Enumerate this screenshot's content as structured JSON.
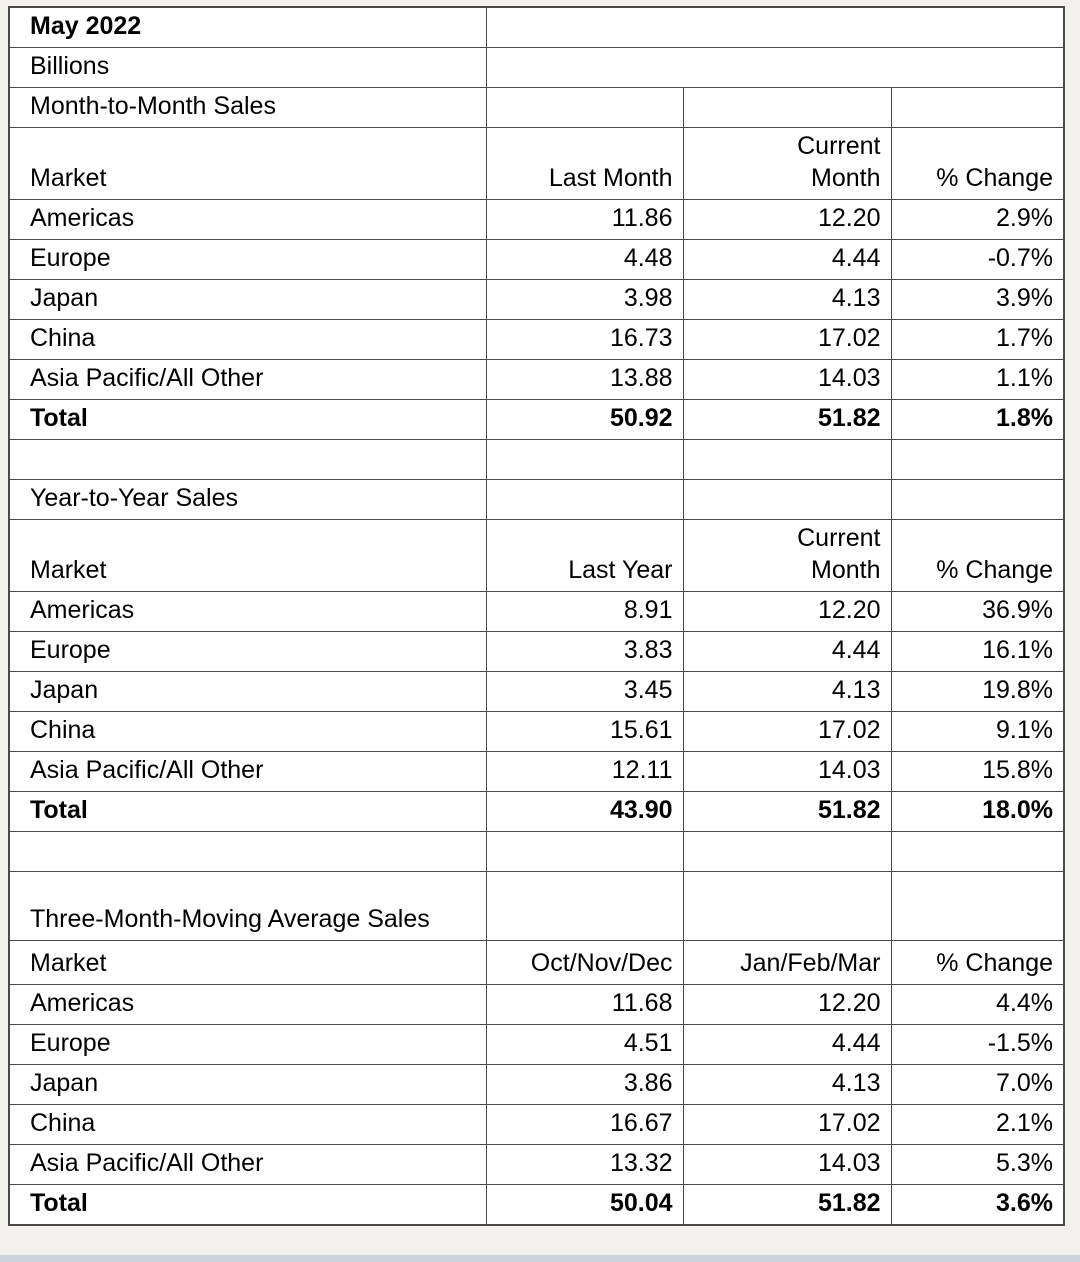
{
  "page": {
    "background_color": "#f3f1ed",
    "table_border_color": "#4a4a4a",
    "bottom_strip_color": "#ccd5d9"
  },
  "report": {
    "title": "May 2022",
    "units": "Billions",
    "market_header": "Market",
    "sections": [
      {
        "title": "Month-to-Month Sales",
        "col_headers": [
          "Last Month",
          "Current\nMonth",
          "% Change"
        ],
        "rows": [
          [
            "Americas",
            "11.86",
            "12.20",
            "2.9%"
          ],
          [
            "Europe",
            "4.48",
            "4.44",
            "-0.7%"
          ],
          [
            "Japan",
            "3.98",
            "4.13",
            "3.9%"
          ],
          [
            "China",
            "16.73",
            "17.02",
            "1.7%"
          ],
          [
            "Asia Pacific/All Other",
            "13.88",
            "14.03",
            "1.1%"
          ],
          [
            "Total",
            "50.92",
            "51.82",
            "1.8%"
          ]
        ]
      },
      {
        "title": "Year-to-Year Sales",
        "col_headers": [
          "Last Year",
          "Current\nMonth",
          "% Change"
        ],
        "rows": [
          [
            "Americas",
            "8.91",
            "12.20",
            "36.9%"
          ],
          [
            "Europe",
            "3.83",
            "4.44",
            "16.1%"
          ],
          [
            "Japan",
            "3.45",
            "4.13",
            "19.8%"
          ],
          [
            "China",
            "15.61",
            "17.02",
            "9.1%"
          ],
          [
            "Asia Pacific/All Other",
            "12.11",
            "14.03",
            "15.8%"
          ],
          [
            "Total",
            "43.90",
            "51.82",
            "18.0%"
          ]
        ]
      },
      {
        "title": "Three-Month-Moving Average Sales",
        "col_headers": [
          "Oct/Nov/Dec",
          "Jan/Feb/Mar",
          "% Change"
        ],
        "rows": [
          [
            "Americas",
            "11.68",
            "12.20",
            "4.4%"
          ],
          [
            "Europe",
            "4.51",
            "4.44",
            "-1.5%"
          ],
          [
            "Japan",
            "3.86",
            "4.13",
            "7.0%"
          ],
          [
            "China",
            "16.67",
            "17.02",
            "2.1%"
          ],
          [
            "Asia Pacific/All Other",
            "13.32",
            "14.03",
            "5.3%"
          ],
          [
            "Total",
            "50.04",
            "51.82",
            "3.6%"
          ]
        ]
      }
    ]
  }
}
